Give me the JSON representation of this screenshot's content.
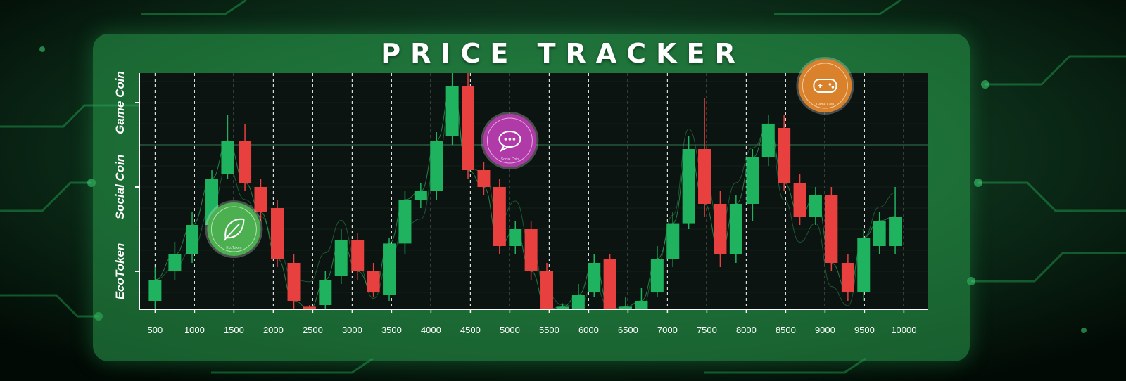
{
  "title": "PRICE TRACKER",
  "colors": {
    "up": "#1fb35f",
    "down": "#e8403f",
    "plot_bg": "#0b1410",
    "panel": "#2aa04e"
  },
  "coins": [
    {
      "name": "EcoToken",
      "icon": "leaf-icon",
      "badge_text": "EcoToken",
      "color": "#4caf50",
      "x": 1500,
      "y": 0.5
    },
    {
      "name": "Social Coin",
      "icon": "chat-bubble-icon",
      "badge_text": "Social Coin",
      "color": "#b03aa8",
      "x": 5000,
      "y": 1.55
    },
    {
      "name": "Game Coin",
      "icon": "gamepad-icon",
      "badge_text": "Game Coin",
      "color": "#d9822b",
      "x": 9000,
      "y": 2.2
    }
  ],
  "chart_data": {
    "type": "candlestick",
    "title": "PRICE TRACKER",
    "y_categories": [
      "EcoToken",
      "Social Coin",
      "Game Coin"
    ],
    "y_range": [
      -0.45,
      2.35
    ],
    "x_range": [
      300,
      10300
    ],
    "x_ticks": [
      500,
      1000,
      1500,
      2000,
      2500,
      3000,
      3500,
      4000,
      4500,
      5000,
      5500,
      6000,
      6500,
      7000,
      7500,
      8000,
      8500,
      9000,
      9500,
      10000
    ],
    "grid": true,
    "candles": [
      {
        "x": 500,
        "open": -0.35,
        "close": -0.1,
        "high": 0.05,
        "low": -0.45
      },
      {
        "x": 750,
        "open": 0.0,
        "close": 0.2,
        "high": 0.35,
        "low": -0.1
      },
      {
        "x": 970,
        "open": 0.2,
        "close": 0.55,
        "high": 0.7,
        "low": 0.1
      },
      {
        "x": 1220,
        "open": 0.55,
        "close": 1.1,
        "high": 1.2,
        "low": 0.45
      },
      {
        "x": 1420,
        "open": 1.15,
        "close": 1.55,
        "high": 1.85,
        "low": 1.1
      },
      {
        "x": 1640,
        "open": 1.55,
        "close": 1.05,
        "high": 1.75,
        "low": 0.95
      },
      {
        "x": 1840,
        "open": 1.0,
        "close": 0.7,
        "high": 1.1,
        "low": 0.6
      },
      {
        "x": 2050,
        "open": 0.75,
        "close": 0.15,
        "high": 0.85,
        "low": 0.05
      },
      {
        "x": 2260,
        "open": 0.1,
        "close": -0.35,
        "high": 0.2,
        "low": -0.45
      },
      {
        "x": 2460,
        "open": -0.42,
        "close": -0.45,
        "high": -0.4,
        "low": -0.45
      },
      {
        "x": 2660,
        "open": -0.4,
        "close": -0.1,
        "high": 0.0,
        "low": -0.45
      },
      {
        "x": 2860,
        "open": -0.05,
        "close": 0.37,
        "high": 0.5,
        "low": -0.15
      },
      {
        "x": 3070,
        "open": 0.37,
        "close": 0.0,
        "high": 0.45,
        "low": -0.1
      },
      {
        "x": 3270,
        "open": 0.0,
        "close": -0.25,
        "high": 0.1,
        "low": -0.3
      },
      {
        "x": 3470,
        "open": -0.28,
        "close": 0.33,
        "high": 0.4,
        "low": -0.35
      },
      {
        "x": 3670,
        "open": 0.33,
        "close": 0.85,
        "high": 0.95,
        "low": 0.2
      },
      {
        "x": 3870,
        "open": 0.85,
        "close": 0.95,
        "high": 1.05,
        "low": 0.75
      },
      {
        "x": 4070,
        "open": 0.95,
        "close": 1.55,
        "high": 1.65,
        "low": 0.85
      },
      {
        "x": 4270,
        "open": 1.6,
        "close": 2.2,
        "high": 2.35,
        "low": 1.5
      },
      {
        "x": 4470,
        "open": 2.2,
        "close": 1.2,
        "high": 2.35,
        "low": 1.1
      },
      {
        "x": 4670,
        "open": 1.2,
        "close": 1.0,
        "high": 1.3,
        "low": 0.9
      },
      {
        "x": 4870,
        "open": 1.0,
        "close": 0.3,
        "high": 1.1,
        "low": 0.2
      },
      {
        "x": 5070,
        "open": 0.3,
        "close": 0.5,
        "high": 0.6,
        "low": 0.2
      },
      {
        "x": 5270,
        "open": 0.5,
        "close": 0.0,
        "high": 0.6,
        "low": -0.1
      },
      {
        "x": 5470,
        "open": 0.0,
        "close": -0.45,
        "high": 0.1,
        "low": -0.45
      },
      {
        "x": 5670,
        "open": -0.45,
        "close": -0.42,
        "high": -0.38,
        "low": -0.45
      },
      {
        "x": 5870,
        "open": -0.45,
        "close": -0.28,
        "high": -0.15,
        "low": -0.45
      },
      {
        "x": 6070,
        "open": -0.25,
        "close": 0.1,
        "high": 0.2,
        "low": -0.3
      },
      {
        "x": 6270,
        "open": 0.15,
        "close": -0.45,
        "high": 0.2,
        "low": -0.45
      },
      {
        "x": 6470,
        "open": -0.45,
        "close": -0.42,
        "high": -0.3,
        "low": -0.45
      },
      {
        "x": 6670,
        "open": -0.45,
        "close": -0.35,
        "high": -0.2,
        "low": -0.45
      },
      {
        "x": 6870,
        "open": -0.25,
        "close": 0.15,
        "high": 0.3,
        "low": -0.3
      },
      {
        "x": 7070,
        "open": 0.15,
        "close": 0.57,
        "high": 0.7,
        "low": 0.05
      },
      {
        "x": 7270,
        "open": 0.57,
        "close": 1.45,
        "high": 1.6,
        "low": 0.5
      },
      {
        "x": 7470,
        "open": 1.45,
        "close": 0.8,
        "high": 2.05,
        "low": 0.65
      },
      {
        "x": 7670,
        "open": 0.8,
        "close": 0.2,
        "high": 0.95,
        "low": 0.05
      },
      {
        "x": 7870,
        "open": 0.2,
        "close": 0.8,
        "high": 0.9,
        "low": 0.1
      },
      {
        "x": 8080,
        "open": 0.8,
        "close": 1.35,
        "high": 1.45,
        "low": 0.6
      },
      {
        "x": 8280,
        "open": 1.35,
        "close": 1.75,
        "high": 1.85,
        "low": 1.25
      },
      {
        "x": 8480,
        "open": 1.7,
        "close": 1.05,
        "high": 1.85,
        "low": 0.95
      },
      {
        "x": 8680,
        "open": 1.05,
        "close": 0.65,
        "high": 1.15,
        "low": 0.55
      },
      {
        "x": 8880,
        "open": 0.65,
        "close": 0.9,
        "high": 1.0,
        "low": 0.55
      },
      {
        "x": 9080,
        "open": 0.9,
        "close": 0.1,
        "high": 1.0,
        "low": 0.0
      },
      {
        "x": 9290,
        "open": 0.1,
        "close": -0.25,
        "high": 0.2,
        "low": -0.35
      },
      {
        "x": 9490,
        "open": -0.25,
        "close": 0.4,
        "high": 0.5,
        "low": -0.35
      },
      {
        "x": 9690,
        "open": 0.3,
        "close": 0.6,
        "high": 0.7,
        "low": 0.2
      },
      {
        "x": 9890,
        "open": 0.3,
        "close": 0.65,
        "high": 1.0,
        "low": 0.2
      }
    ]
  }
}
